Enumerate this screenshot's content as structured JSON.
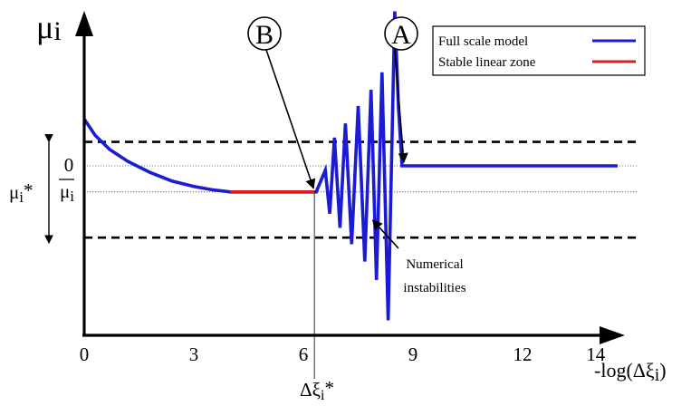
{
  "chart_data": {
    "type": "line",
    "title": "",
    "ylabel_main": "μ",
    "ylabel_sub": "i",
    "xlabel": "-log(Δξ",
    "xlabel_sub": "i",
    "xlabel_close": ")",
    "xlim": [
      0,
      15
    ],
    "ylim": [
      -1.5,
      1.15
    ],
    "x_ticks": [
      0,
      3,
      6,
      9,
      12,
      14
    ],
    "y_ticks": {
      "zero": "0",
      "mu_bar": "μ",
      "mu_bar_sub": "i",
      "mu_star": "μ",
      "mu_star_sub": "i",
      "mu_star_suffix": "*"
    },
    "reference_levels": {
      "zero": 0.0,
      "mu_bar": -0.24,
      "upper_dashed": 0.22,
      "lower_dashed": -0.66
    },
    "threshold": {
      "x": 6.3,
      "label": "Δξ",
      "label_sub": "i",
      "label_suffix": "*"
    },
    "series": [
      {
        "name": "Full scale model",
        "color": "#1b1bd4",
        "x": [
          0,
          0.3,
          0.7,
          1.2,
          1.8,
          2.4,
          3.0,
          3.5,
          4.0,
          5.0,
          6.0,
          6.3,
          6.35,
          6.6,
          6.72,
          6.85,
          7.0,
          7.15,
          7.32,
          7.5,
          7.68,
          7.85,
          8.0,
          8.15,
          8.32,
          8.5,
          8.6,
          8.7,
          14.6
        ],
        "y": [
          0.43,
          0.28,
          0.15,
          0.04,
          -0.06,
          -0.14,
          -0.19,
          -0.22,
          -0.24,
          -0.24,
          -0.24,
          -0.24,
          -0.24,
          -0.04,
          -0.44,
          0.26,
          -0.57,
          0.39,
          -0.72,
          0.55,
          -0.88,
          0.7,
          -1.05,
          0.86,
          -1.42,
          1.42,
          0.55,
          0.0,
          0.0
        ]
      },
      {
        "name": "Stable linear zone",
        "color": "#d61f1f",
        "x": [
          4.0,
          6.3
        ],
        "y": [
          -0.24,
          -0.24
        ]
      }
    ],
    "legend_position": "top-right",
    "annotations": [
      {
        "id": "A",
        "text": "A",
        "points_to": [
          8.7,
          0.0
        ]
      },
      {
        "id": "B",
        "text": "B",
        "points_to": [
          6.3,
          -0.24
        ]
      },
      {
        "id": "numerical",
        "line1": "Numerical",
        "line2": "instabilities",
        "points_to": [
          7.75,
          -0.45
        ]
      }
    ]
  }
}
